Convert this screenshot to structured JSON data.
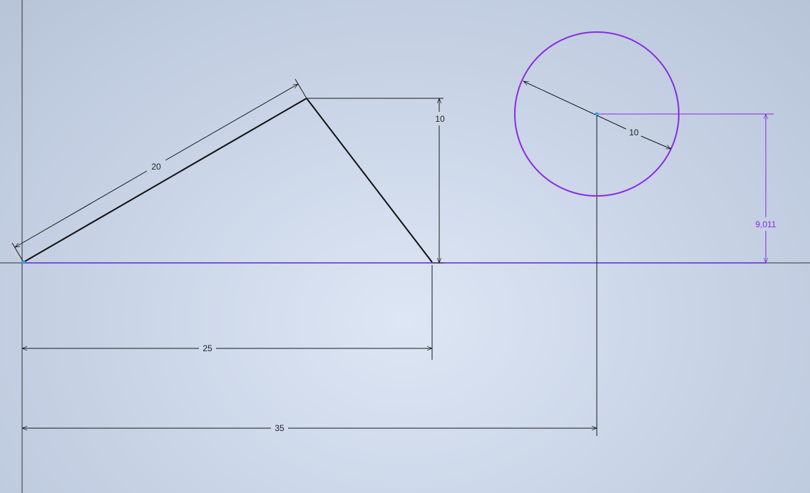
{
  "colors": {
    "geometry": "#111111",
    "dimension": "#1a1a1a",
    "axis": "#333333",
    "constraint": "#8a2be2",
    "point": "#2fa4e7"
  },
  "dimensions": {
    "slanted_length": "20",
    "height": "10",
    "base_length": "25",
    "circle_offset": "35",
    "circle_diameter": "10",
    "circle_height": "9,011"
  }
}
